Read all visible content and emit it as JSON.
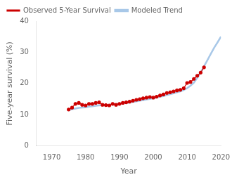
{
  "chart_data": {
    "type": "line",
    "title": "",
    "xlabel": "Year",
    "ylabel": "Five-year survival (%)",
    "xlim": [
      1965.5,
      2020
    ],
    "ylim": [
      0,
      40
    ],
    "xticks": [
      1970,
      1980,
      1990,
      2000,
      2010,
      2020
    ],
    "yticks": [
      0,
      10,
      20,
      30,
      40
    ],
    "grid": false,
    "legend": "upper left",
    "series": [
      {
        "name": "Modeled Trend",
        "color": "#a8c8e8",
        "x": [
          1975,
          1976,
          1977,
          1978,
          1979,
          1980,
          1981,
          1982,
          1983,
          1984,
          1985,
          1986,
          1987,
          1988,
          1989,
          1990,
          1991,
          1992,
          1993,
          1994,
          1995,
          1996,
          1997,
          1998,
          1999,
          2000,
          2001,
          2002,
          2003,
          2004,
          2005,
          2006,
          2007,
          2008,
          2009,
          2010,
          2011,
          2012,
          2013,
          2014,
          2015,
          2016,
          2017,
          2018,
          2019,
          2020
        ],
        "values": [
          11.5,
          11.8,
          12.0,
          12.2,
          12.3,
          12.4,
          12.6,
          12.7,
          12.9,
          13.0,
          13.1,
          13.1,
          13.2,
          13.3,
          13.4,
          13.5,
          13.6,
          13.8,
          13.9,
          14.1,
          14.3,
          14.5,
          14.7,
          14.9,
          15.1,
          15.3,
          15.5,
          15.8,
          16.0,
          16.3,
          16.6,
          16.9,
          17.2,
          17.5,
          17.9,
          18.5,
          19.3,
          20.3,
          21.8,
          23.5,
          25.5,
          27.5,
          29.5,
          31.5,
          33.2,
          35.0
        ]
      },
      {
        "name": "Observed 5-Year Survival",
        "color": "#CC0000",
        "marker": "o",
        "x": [
          1975,
          1976,
          1977,
          1978,
          1979,
          1980,
          1981,
          1982,
          1983,
          1984,
          1985,
          1986,
          1987,
          1988,
          1989,
          1990,
          1991,
          1992,
          1993,
          1994,
          1995,
          1996,
          1997,
          1998,
          1999,
          2000,
          2001,
          2002,
          2003,
          2004,
          2005,
          2006,
          2007,
          2008,
          2009,
          2010,
          2011,
          2012,
          2013,
          2014,
          2015
        ],
        "values": [
          11.7,
          12.3,
          13.5,
          13.8,
          13.2,
          13.0,
          13.5,
          13.5,
          13.8,
          14.0,
          13.2,
          13.1,
          13.0,
          13.5,
          13.2,
          13.5,
          13.8,
          14.0,
          14.2,
          14.5,
          14.8,
          15.0,
          15.3,
          15.5,
          15.7,
          15.5,
          15.8,
          16.2,
          16.5,
          17.0,
          17.2,
          17.5,
          17.8,
          18.0,
          18.5,
          20.2,
          20.5,
          21.5,
          22.5,
          23.5,
          25.2
        ]
      }
    ]
  }
}
